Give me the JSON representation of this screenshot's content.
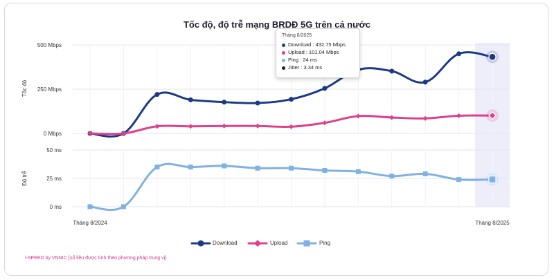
{
  "chart_data": {
    "type": "line",
    "title": "Tốc độ, độ trễ mạng BRDĐ 5G trên cả nước",
    "x_start_label": "Tháng 8/2024",
    "x_end_label": "Tháng 8/2025",
    "point_count": 13,
    "panels": [
      {
        "ylabel": "Tốc độ",
        "ylim": [
          0,
          500
        ],
        "ticks": [
          {
            "value": 0,
            "label": "0 Mbps"
          },
          {
            "value": 250,
            "label": "250 Mbps"
          },
          {
            "value": 500,
            "label": "500 Mbps"
          }
        ],
        "series": [
          {
            "name": "Download",
            "color": "#1c3a84",
            "values": [
              0,
              0,
              220,
              190,
              177,
              172,
              193,
              255,
              360,
              352,
              290,
              450,
              432.75
            ]
          },
          {
            "name": "Upload",
            "color": "#df3f8b",
            "values": [
              0,
              0,
              40,
              40,
              42,
              42,
              38,
              60,
              98,
              90,
              85,
              100,
              101.04
            ]
          }
        ]
      },
      {
        "ylabel": "Độ trễ",
        "ylim": [
          0,
          50
        ],
        "ticks": [
          {
            "value": 0,
            "label": "0 ms"
          },
          {
            "value": 25,
            "label": "25 ms"
          },
          {
            "value": 50,
            "label": "50 ms"
          }
        ],
        "series": [
          {
            "name": "Ping",
            "color": "#7fb1e3",
            "values": [
              0,
              0,
              35,
              35,
              36,
              34,
              34,
              32,
              31,
              27,
              29,
              24,
              24
            ]
          }
        ]
      }
    ],
    "legend": [
      {
        "name": "Download",
        "color": "#1c3a84",
        "marker": "circle"
      },
      {
        "name": "Upload",
        "color": "#df3f8b",
        "marker": "diamond"
      },
      {
        "name": "Ping",
        "color": "#7fb1e3",
        "marker": "square"
      }
    ],
    "tooltip": {
      "header": "Tháng 8/2025",
      "rows": [
        {
          "label": "Download : 432.75 Mbps",
          "color": "#1c3a84"
        },
        {
          "label": "Upload : 101.04 Mbps",
          "color": "#df3f8b"
        },
        {
          "label": "Ping : 24 ms",
          "color": "#7fb1e3"
        },
        {
          "label": "Jitter : 3.34 ms",
          "color": "#222222"
        }
      ]
    }
  },
  "footnote": "i-SPEED by VNNIC (số liệu được tính theo phương pháp trung vị)"
}
